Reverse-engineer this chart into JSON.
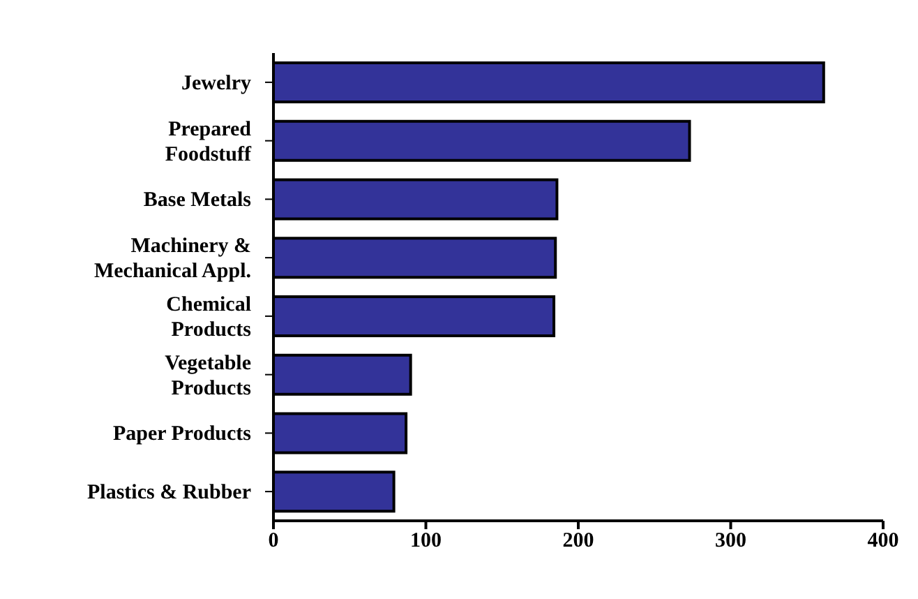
{
  "chart_data": {
    "type": "bar",
    "orientation": "horizontal",
    "categories": [
      "Jewelry",
      "Prepared\nFoodstuff",
      "Base Metals",
      "Machinery &\nMechanical Appl.",
      "Chemical\nProducts",
      "Vegetable\nProducts",
      "Paper Products",
      "Plastics & Rubber"
    ],
    "values": [
      361,
      273,
      186,
      185,
      184,
      90,
      87,
      79
    ],
    "color": "#333399",
    "xlim": [
      0,
      400
    ],
    "xticks": [
      0,
      100,
      200,
      300,
      400
    ],
    "grid": false
  }
}
